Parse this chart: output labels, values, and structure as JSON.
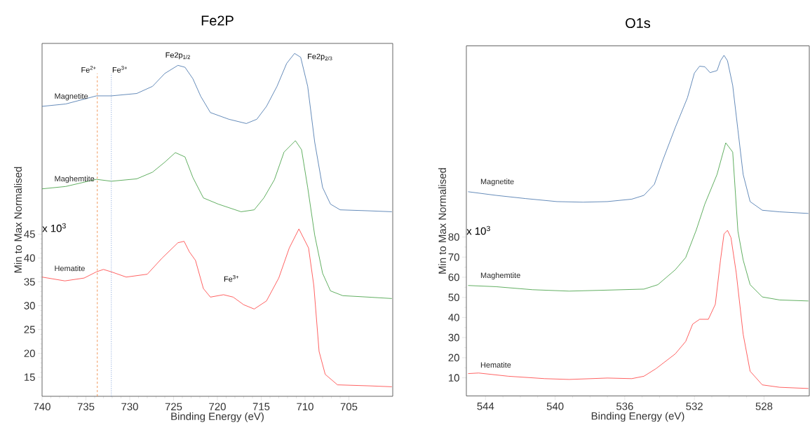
{
  "chart_data": [
    {
      "type": "line",
      "title": "Fe2P",
      "xlabel": "Binding Energy (eV)",
      "ylabel": "Min to Max Normalised",
      "xlim": [
        740,
        700
      ],
      "ylim": [
        11,
        85
      ],
      "xticks": [
        740,
        735,
        730,
        725,
        720,
        715,
        710,
        705
      ],
      "yticks": [
        15,
        20,
        25,
        30,
        35,
        40,
        45
      ],
      "series": [
        {
          "name": "Magnetite",
          "color": "#3f6ea8",
          "x": [
            740,
            737.3,
            733.8,
            732.1,
            729.2,
            727.4,
            726.0,
            724.5,
            723.7,
            722.8,
            721.9,
            720.8,
            718.7,
            716.7,
            715.5,
            714.4,
            713.2,
            712.1,
            711.2,
            710.5,
            709.7,
            708.9,
            708.0,
            707.1,
            706.0,
            702.8,
            700.1
          ],
          "values": [
            71.8,
            72.3,
            74.0,
            74.0,
            74.5,
            76.0,
            78.7,
            80.4,
            80.0,
            77.6,
            73.9,
            70.5,
            69.1,
            68.2,
            69.1,
            71.8,
            76.0,
            80.8,
            82.9,
            82.1,
            76.0,
            64.3,
            54.8,
            51.3,
            50.1,
            49.9,
            49.7
          ]
        },
        {
          "name": "Maghemtite",
          "color": "#3a9a3a",
          "x": [
            740,
            737.3,
            733.8,
            732.1,
            729.2,
            727.4,
            726.0,
            724.8,
            723.7,
            722.8,
            721.6,
            719.9,
            717.3,
            715.8,
            714.7,
            713.5,
            712.4,
            711.1,
            710.4,
            709.7,
            708.9,
            708.0,
            707.1,
            705.7,
            702.8,
            700.1
          ],
          "values": [
            54.5,
            55.0,
            56.5,
            56.1,
            56.6,
            58.0,
            60.1,
            62.1,
            61.2,
            56.9,
            52.6,
            51.3,
            49.7,
            50.1,
            52.6,
            56.4,
            62.2,
            64.6,
            62.7,
            54.8,
            44.8,
            36.8,
            33.1,
            32.1,
            31.8,
            31.5
          ]
        },
        {
          "name": "Hematite",
          "color": "#ff3b3b",
          "x": [
            740,
            737.4,
            735.2,
            733.8,
            733.0,
            732.1,
            730.4,
            728.0,
            726.3,
            724.5,
            723.8,
            723.2,
            722.5,
            721.6,
            720.8,
            719.3,
            718.2,
            717.0,
            715.8,
            714.4,
            713.0,
            711.8,
            710.7,
            709.6,
            709.0,
            708.4,
            707.7,
            706.3,
            702.8,
            700.1
          ],
          "values": [
            36.0,
            35.2,
            35.8,
            37.1,
            37.6,
            37.1,
            36.0,
            36.6,
            40.0,
            43.2,
            43.5,
            41.3,
            39.5,
            33.6,
            31.8,
            32.3,
            31.8,
            30.2,
            29.3,
            31.0,
            35.8,
            42.1,
            46.1,
            42.1,
            34.2,
            20.4,
            15.6,
            13.4,
            13.2,
            13.0
          ]
        }
      ],
      "ref_lines": [
        {
          "axis": "x",
          "value": 733.7,
          "label": "Fe$^{2+}$",
          "color": "#ed7d31",
          "line_style": "dashed"
        },
        {
          "axis": "x",
          "value": 732.1,
          "label": "Fe$^{3+}$",
          "color": "#4472c4",
          "line_style": "dotted"
        }
      ],
      "annotations": [
        "Fe2p$_{1/2}$",
        "Fe2p$_{2/3}$",
        "Fe$^{3+}$",
        "x 10$^{3}$"
      ]
    },
    {
      "type": "line",
      "title": "O1s",
      "xlabel": "Binding Energy (eV)",
      "ylabel": "Min to Max Normalised",
      "xlim": [
        545.1,
        525.4
      ],
      "ylim": [
        1,
        175
      ],
      "xticks": [
        544,
        540,
        536,
        532,
        528
      ],
      "yticks": [
        10,
        20,
        30,
        40,
        50,
        60,
        70,
        80
      ],
      "series": [
        {
          "name": "Magnetite",
          "color": "#3f6ea8",
          "x": [
            545.0,
            543.4,
            541.7,
            539.9,
            538.4,
            537.0,
            535.6,
            534.9,
            534.3,
            533.8,
            533.1,
            532.4,
            532.0,
            531.7,
            531.4,
            531.1,
            530.7,
            530.5,
            530.3,
            530.1,
            529.8,
            529.5,
            529.2,
            528.8,
            528.1,
            527.1,
            525.45
          ],
          "values": [
            102.5,
            100.7,
            99.1,
            97.6,
            97.3,
            97.6,
            98.8,
            100.7,
            106.2,
            118.5,
            134.4,
            149.2,
            161.5,
            164.9,
            164.6,
            161.7,
            162.7,
            167.6,
            170.3,
            167.6,
            155.3,
            133.2,
            111.1,
            97.6,
            93.3,
            92.5,
            91.7
          ]
        },
        {
          "name": "Maghemtite",
          "color": "#3a9a3a",
          "x": [
            545.0,
            543.4,
            541.3,
            539.2,
            537.0,
            534.9,
            534.1,
            533.1,
            532.5,
            531.9,
            531.4,
            530.7,
            530.2,
            529.8,
            529.5,
            529.2,
            528.8,
            528.1,
            527.1,
            525.45
          ],
          "values": [
            55.9,
            55.3,
            53.8,
            53.1,
            53.6,
            54.1,
            56.3,
            63.7,
            69.8,
            83.3,
            96.4,
            111.1,
            126.8,
            122.2,
            82.9,
            68.6,
            56.3,
            50.2,
            48.7,
            48.2
          ]
        },
        {
          "name": "Hematite",
          "color": "#ff3b3b",
          "x": [
            545.0,
            544.4,
            542.7,
            540.6,
            539.2,
            537.0,
            535.6,
            534.9,
            534.2,
            533.1,
            532.5,
            532.1,
            531.7,
            531.2,
            530.8,
            530.5,
            530.3,
            530.1,
            529.9,
            529.6,
            529.2,
            528.8,
            528.1,
            527.1,
            525.45
          ],
          "values": [
            12.1,
            12.4,
            10.8,
            9.6,
            9.2,
            9.9,
            9.6,
            10.8,
            14.6,
            21.9,
            28.1,
            36.7,
            39.1,
            39.1,
            46.5,
            68.6,
            81.5,
            83.3,
            79.7,
            62.4,
            31.7,
            13.3,
            6.5,
            5.3,
            4.7
          ]
        }
      ],
      "annotations": [
        "x 10$^{3}$"
      ]
    }
  ]
}
